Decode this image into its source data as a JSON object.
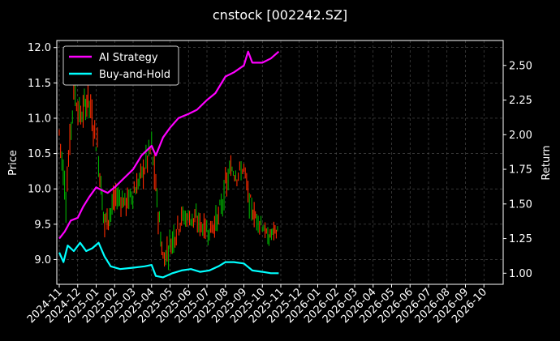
{
  "chart_data": {
    "type": "line",
    "title": "cnstock [002242.SZ]",
    "ylabel": "Price",
    "y2label": "Return",
    "grid": true,
    "legend_position": "top-left",
    "background": "#000000",
    "ylim": [
      8.65,
      12.1
    ],
    "y2lim": [
      0.92,
      2.68
    ],
    "y_ticks": [
      "9.0",
      "9.5",
      "10.0",
      "10.5",
      "11.0",
      "11.5",
      "12.0"
    ],
    "y2_ticks": [
      "1.00",
      "1.25",
      "1.50",
      "1.75",
      "2.00",
      "2.25",
      "2.50"
    ],
    "x_ticks": [
      "2024-11",
      "2024-12",
      "2025-01",
      "2025-02",
      "2025-03",
      "2025-04",
      "2025-05",
      "2025-06",
      "2025-07",
      "2025-08",
      "2025-09",
      "2025-10",
      "2025-11",
      "2025-12",
      "2026-01",
      "2026-02",
      "2026-03",
      "2026-04",
      "2026-05",
      "2026-06",
      "2026-07",
      "2026-08",
      "2026-09",
      "2026-10"
    ],
    "price_series": {
      "name": "Price (OHLC candles)",
      "color_up": "#ff2a00",
      "color_down": "#00b000",
      "x": [
        "2024-11-01",
        "2024-11-12",
        "2024-11-25",
        "2024-12-06",
        "2024-12-18",
        "2025-01-03",
        "2025-01-15",
        "2025-02-05",
        "2025-02-20",
        "2025-03-05",
        "2025-03-20",
        "2025-04-01",
        "2025-04-08",
        "2025-04-20",
        "2025-05-05",
        "2025-05-20",
        "2025-06-05",
        "2025-06-20",
        "2025-07-05",
        "2025-07-20",
        "2025-08-01",
        "2025-08-10",
        "2025-08-20",
        "2025-09-01",
        "2025-09-10",
        "2025-09-20",
        "2025-10-01",
        "2025-10-10",
        "2025-10-20",
        "2025-10-28"
      ],
      "close": [
        10.8,
        9.9,
        11.4,
        11.0,
        11.3,
        10.6,
        9.5,
        9.9,
        9.8,
        10.0,
        10.3,
        10.6,
        10.0,
        9.0,
        9.3,
        9.6,
        9.6,
        9.5,
        9.4,
        9.6,
        10.0,
        10.3,
        10.2,
        10.3,
        9.8,
        9.6,
        9.5,
        9.3,
        9.4,
        9.4
      ],
      "high": [
        11.1,
        10.3,
        11.8,
        11.3,
        11.6,
        11.0,
        10.0,
        10.2,
        10.1,
        10.3,
        10.7,
        11.0,
        10.4,
        9.4,
        9.8,
        9.9,
        9.9,
        9.8,
        9.7,
        10.0,
        10.5,
        10.5,
        10.4,
        10.5,
        10.1,
        9.9,
        9.8,
        9.5,
        9.6,
        9.5
      ],
      "low": [
        10.3,
        9.4,
        11.0,
        10.6,
        10.8,
        10.2,
        9.2,
        9.6,
        9.5,
        9.7,
        10.0,
        10.2,
        9.6,
        8.8,
        9.0,
        9.3,
        9.3,
        9.2,
        9.2,
        9.4,
        9.7,
        10.0,
        9.9,
        10.0,
        9.5,
        9.4,
        9.3,
        9.1,
        9.2,
        9.2
      ]
    },
    "series": [
      {
        "name": "AI Strategy",
        "color": "#ff00ff",
        "axis": "right",
        "x": [
          "2024-11-01",
          "2024-11-10",
          "2024-11-20",
          "2024-12-01",
          "2024-12-10",
          "2024-12-20",
          "2025-01-01",
          "2025-01-10",
          "2025-01-20",
          "2025-02-01",
          "2025-02-15",
          "2025-03-01",
          "2025-03-15",
          "2025-04-01",
          "2025-04-08",
          "2025-04-20",
          "2025-05-01",
          "2025-05-15",
          "2025-06-01",
          "2025-06-15",
          "2025-07-01",
          "2025-07-15",
          "2025-08-01",
          "2025-08-15",
          "2025-09-01",
          "2025-09-08",
          "2025-09-15",
          "2025-10-01",
          "2025-10-15",
          "2025-10-28"
        ],
        "values": [
          1.25,
          1.3,
          1.38,
          1.4,
          1.48,
          1.55,
          1.62,
          1.6,
          1.58,
          1.62,
          1.68,
          1.75,
          1.85,
          1.92,
          1.85,
          1.98,
          2.05,
          2.12,
          2.15,
          2.18,
          2.25,
          2.3,
          2.42,
          2.45,
          2.5,
          2.6,
          2.52,
          2.52,
          2.55,
          2.6
        ]
      },
      {
        "name": "Buy-and-Hold",
        "color": "#00ffff",
        "axis": "right",
        "x": [
          "2024-11-01",
          "2024-11-08",
          "2024-11-15",
          "2024-11-25",
          "2024-12-05",
          "2024-12-15",
          "2024-12-25",
          "2025-01-05",
          "2025-01-15",
          "2025-01-25",
          "2025-02-10",
          "2025-03-01",
          "2025-03-20",
          "2025-04-01",
          "2025-04-08",
          "2025-04-20",
          "2025-05-05",
          "2025-05-20",
          "2025-06-05",
          "2025-06-20",
          "2025-07-05",
          "2025-07-20",
          "2025-08-01",
          "2025-08-15",
          "2025-09-01",
          "2025-09-15",
          "2025-10-01",
          "2025-10-15",
          "2025-10-28"
        ],
        "values": [
          1.15,
          1.08,
          1.2,
          1.16,
          1.22,
          1.16,
          1.18,
          1.22,
          1.12,
          1.05,
          1.03,
          1.04,
          1.05,
          1.06,
          0.98,
          0.97,
          1.0,
          1.02,
          1.03,
          1.01,
          1.02,
          1.05,
          1.08,
          1.08,
          1.07,
          1.02,
          1.01,
          1.0,
          1.0
        ]
      }
    ]
  }
}
